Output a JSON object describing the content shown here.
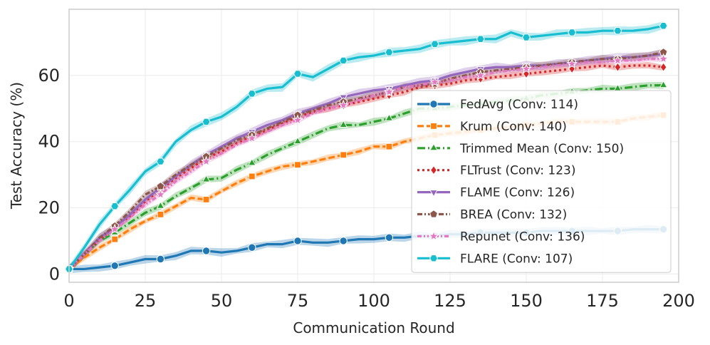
{
  "chart_data": {
    "type": "line",
    "title": "",
    "xlabel": "Communication Round",
    "ylabel": "Test Accuracy (%)",
    "xlim": [
      0,
      200
    ],
    "ylim": [
      -2.5,
      80
    ],
    "xticks": [
      0,
      25,
      50,
      75,
      100,
      125,
      150,
      175,
      200
    ],
    "yticks": [
      0,
      20,
      40,
      60
    ],
    "grid": true,
    "legend_position": "center-right",
    "x": [
      0,
      5,
      10,
      15,
      20,
      25,
      30,
      35,
      40,
      45,
      50,
      55,
      60,
      65,
      70,
      75,
      80,
      85,
      90,
      95,
      100,
      105,
      110,
      115,
      120,
      125,
      130,
      135,
      140,
      145,
      150,
      155,
      160,
      165,
      170,
      175,
      180,
      185,
      190,
      195
    ],
    "marker_every": 3,
    "series": [
      {
        "name": "FedAvg (Conv: 114)",
        "color": "#1f77b4",
        "dash": "",
        "marker": "circle",
        "values": [
          1.5,
          1.5,
          2,
          2.5,
          3.5,
          4.5,
          4.5,
          5.5,
          7,
          7,
          6.5,
          7,
          8,
          9,
          9,
          10,
          9.5,
          9.5,
          10,
          10.5,
          10.5,
          11,
          11,
          11.5,
          11.5,
          12,
          12,
          12.5,
          12.5,
          12.5,
          12.5,
          13,
          13,
          13,
          13,
          13,
          13,
          13.5,
          13.5,
          13.5
        ]
      },
      {
        "name": "Krum (Conv: 140)",
        "color": "#ff7f0e",
        "dash": "9,4",
        "marker": "square",
        "values": [
          1.5,
          5,
          8,
          10.5,
          13.5,
          16,
          18,
          20.5,
          23,
          22.5,
          25,
          27.5,
          29.5,
          31,
          32.5,
          33,
          34,
          35,
          36,
          37,
          38.5,
          38.5,
          40,
          41,
          42,
          42.5,
          43,
          43.5,
          44,
          44.5,
          45,
          45.5,
          46,
          46,
          46,
          46,
          46,
          47,
          47.5,
          48
        ]
      },
      {
        "name": "Trimmed Mean (Conv: 150)",
        "color": "#2ca02c",
        "dash": "11,4,2,4",
        "marker": "triangle-up",
        "values": [
          1.5,
          6,
          10,
          12.5,
          15.5,
          18.5,
          20.5,
          23.5,
          26,
          28.5,
          29,
          31.5,
          33.5,
          36,
          38,
          40,
          42,
          44,
          45,
          45,
          46,
          47,
          48.5,
          50,
          50,
          50.5,
          51,
          51.5,
          52,
          52.5,
          53,
          54,
          54.5,
          55,
          55.5,
          56,
          56,
          56.5,
          57,
          57
        ]
      },
      {
        "name": "FLTrust (Conv: 123)",
        "color": "#d62728",
        "dash": "3,4",
        "marker": "diamond",
        "values": [
          1.5,
          6,
          10.5,
          14,
          17.5,
          22,
          25.5,
          29,
          32,
          35,
          37,
          39.5,
          41.5,
          43.5,
          45.5,
          47.5,
          49,
          50,
          51,
          52,
          53,
          54,
          55,
          56.5,
          57,
          57.5,
          58.5,
          59,
          59.5,
          60,
          60.5,
          61,
          61.5,
          62,
          62.5,
          63,
          62.5,
          63,
          63,
          62.5
        ]
      },
      {
        "name": "FLAME (Conv: 126)",
        "color": "#9467bd",
        "dash": "",
        "marker": "triangle-down",
        "values": [
          1.5,
          6,
          11,
          14,
          18,
          22.5,
          26,
          29.5,
          33,
          36,
          38.5,
          41,
          43,
          45,
          46.5,
          48.5,
          50,
          51.5,
          53.5,
          54.5,
          55.5,
          56,
          57,
          58,
          58.5,
          60,
          61,
          62,
          62.5,
          62.5,
          63,
          63,
          63.5,
          64,
          64.5,
          65,
          65.5,
          65.5,
          66,
          66.5
        ]
      },
      {
        "name": "BREA (Conv: 132)",
        "color": "#8c564b",
        "dash": "7,3,2,3",
        "marker": "pentagon",
        "values": [
          1.5,
          6,
          11,
          14.5,
          19,
          24,
          26.5,
          30,
          33,
          35.5,
          38,
          40.5,
          42,
          44,
          46,
          48,
          49.5,
          51,
          52,
          53,
          54,
          55,
          56.5,
          57,
          57.5,
          59,
          60,
          61,
          61.5,
          62,
          62.5,
          63,
          63.5,
          64,
          64.5,
          65,
          65,
          65.5,
          66,
          67
        ]
      },
      {
        "name": "Repunet (Conv: 136)",
        "color": "#e377c2",
        "dash": "6,3,2,3,2,3",
        "marker": "star",
        "values": [
          1.5,
          6,
          10,
          13.5,
          17,
          21,
          24,
          28,
          31,
          34,
          36.5,
          39,
          41,
          43,
          45,
          46.5,
          48.5,
          50,
          51,
          52.5,
          54,
          55,
          56.5,
          57,
          58,
          58.5,
          59.5,
          60,
          61,
          61.5,
          62,
          62.5,
          63,
          63.5,
          64,
          64,
          64.5,
          64.5,
          65,
          65
        ]
      },
      {
        "name": "FLARE (Conv: 107)",
        "color": "#17becf",
        "dash": "",
        "marker": "hexagon",
        "values": [
          1.5,
          8,
          15,
          20.5,
          25.5,
          31,
          34,
          40,
          43.5,
          46,
          47.5,
          50.5,
          54.5,
          56,
          56.5,
          60.5,
          59.5,
          62,
          64.5,
          65.5,
          66,
          67,
          67.5,
          68,
          69.5,
          70,
          70.5,
          71,
          71,
          73,
          71.5,
          72,
          72.5,
          73,
          73,
          73.5,
          73.5,
          73.5,
          74,
          75
        ]
      }
    ]
  }
}
